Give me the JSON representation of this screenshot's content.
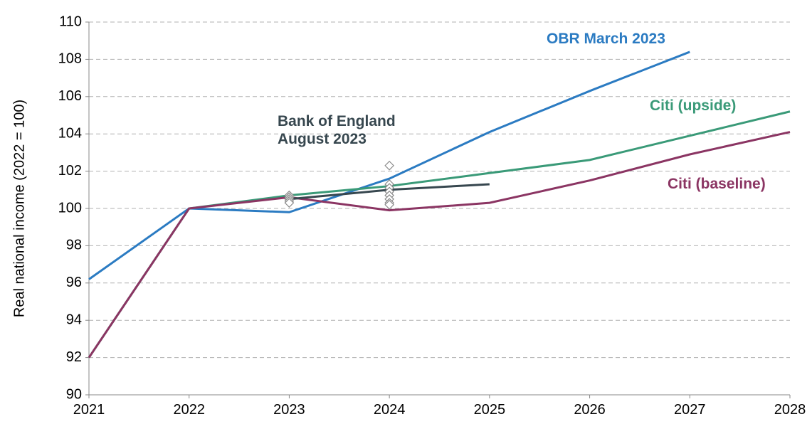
{
  "chart_data": {
    "type": "line",
    "y_label": "Real national income (2022 = 100)",
    "x": [
      2021,
      2022,
      2023,
      2024,
      2025,
      2026,
      2027,
      2028
    ],
    "series": [
      {
        "name": "OBR March 2023",
        "color": "#2b7bc2",
        "values": [
          96.2,
          100,
          99.8,
          101.6,
          104.1,
          106.3,
          108.4,
          null
        ]
      },
      {
        "name": "Citi (upside)",
        "color": "#3a9a78",
        "values": [
          92,
          100,
          100.7,
          101.2,
          101.9,
          102.6,
          103.9,
          105.2
        ]
      },
      {
        "name": "Citi (baseline)",
        "color": "#8b3563",
        "values": [
          92,
          100,
          100.6,
          99.9,
          100.3,
          101.5,
          102.9,
          104.1
        ]
      },
      {
        "name": "Bank of England August 2023",
        "color": "#37474f",
        "values": [
          null,
          null,
          100.5,
          101.0,
          101.3,
          null,
          null,
          null
        ]
      }
    ],
    "points": {
      "color": "#8a8a8a",
      "x": [
        2023,
        2023,
        2023,
        2023,
        2023,
        2024,
        2024,
        2024,
        2024,
        2024,
        2024,
        2024,
        2024
      ],
      "values": [
        100.7,
        100.6,
        100.5,
        100.4,
        100.3,
        102.3,
        101.3,
        101.1,
        100.9,
        100.7,
        100.5,
        100.3,
        100.2
      ]
    },
    "xlim": [
      2021,
      2028
    ],
    "xticks": [
      2021,
      2022,
      2023,
      2024,
      2025,
      2026,
      2027,
      2028
    ],
    "ylim": [
      90,
      110
    ],
    "yticks": [
      90,
      92,
      94,
      96,
      98,
      100,
      102,
      104,
      106,
      108,
      110
    ],
    "grid": true
  }
}
